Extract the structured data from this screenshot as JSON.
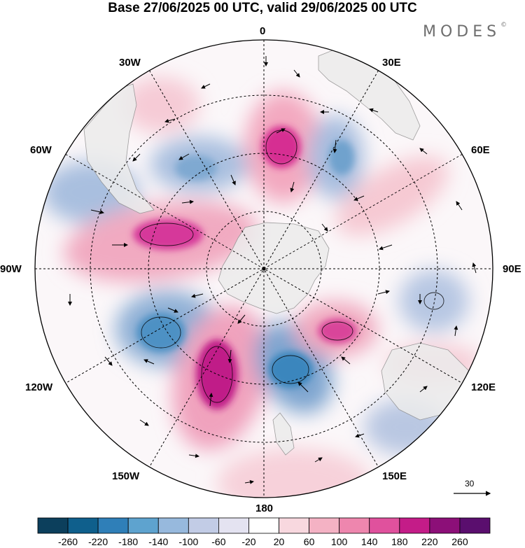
{
  "title": "Base 27/06/2025 00 UTC, valid 29/06/2025 00 UTC",
  "brand": {
    "name": "MODES",
    "mark": "©"
  },
  "longitude_labels": {
    "lon_0": "0",
    "lon_30e": "30E",
    "lon_60e": "60E",
    "lon_90e": "90E",
    "lon_120e": "120E",
    "lon_150e": "150E",
    "lon_180": "180",
    "lon_150w": "150W",
    "lon_120w": "120W",
    "lon_90w": "90W",
    "lon_60w": "60W",
    "lon_30w": "30W"
  },
  "reference_vector": {
    "label": "30"
  },
  "colorbar": {
    "ticks": [
      "-260",
      "-220",
      "-180",
      "-140",
      "-100",
      "-60",
      "-20",
      "20",
      "60",
      "100",
      "140",
      "180",
      "220",
      "260"
    ],
    "colors": [
      "#0c3f5c",
      "#0f5f8c",
      "#2f7fb8",
      "#5ea3cf",
      "#97b9dd",
      "#c2cce6",
      "#e4e3f1",
      "#ffffff",
      "#f8d8df",
      "#f4b2c4",
      "#ee86ae",
      "#e0519d",
      "#c41c88",
      "#8c0f78",
      "#5a0e6e"
    ]
  },
  "map_colors": {
    "land": "#ececec",
    "land_edge": "#8e8e8e",
    "grid": "#000000"
  }
}
